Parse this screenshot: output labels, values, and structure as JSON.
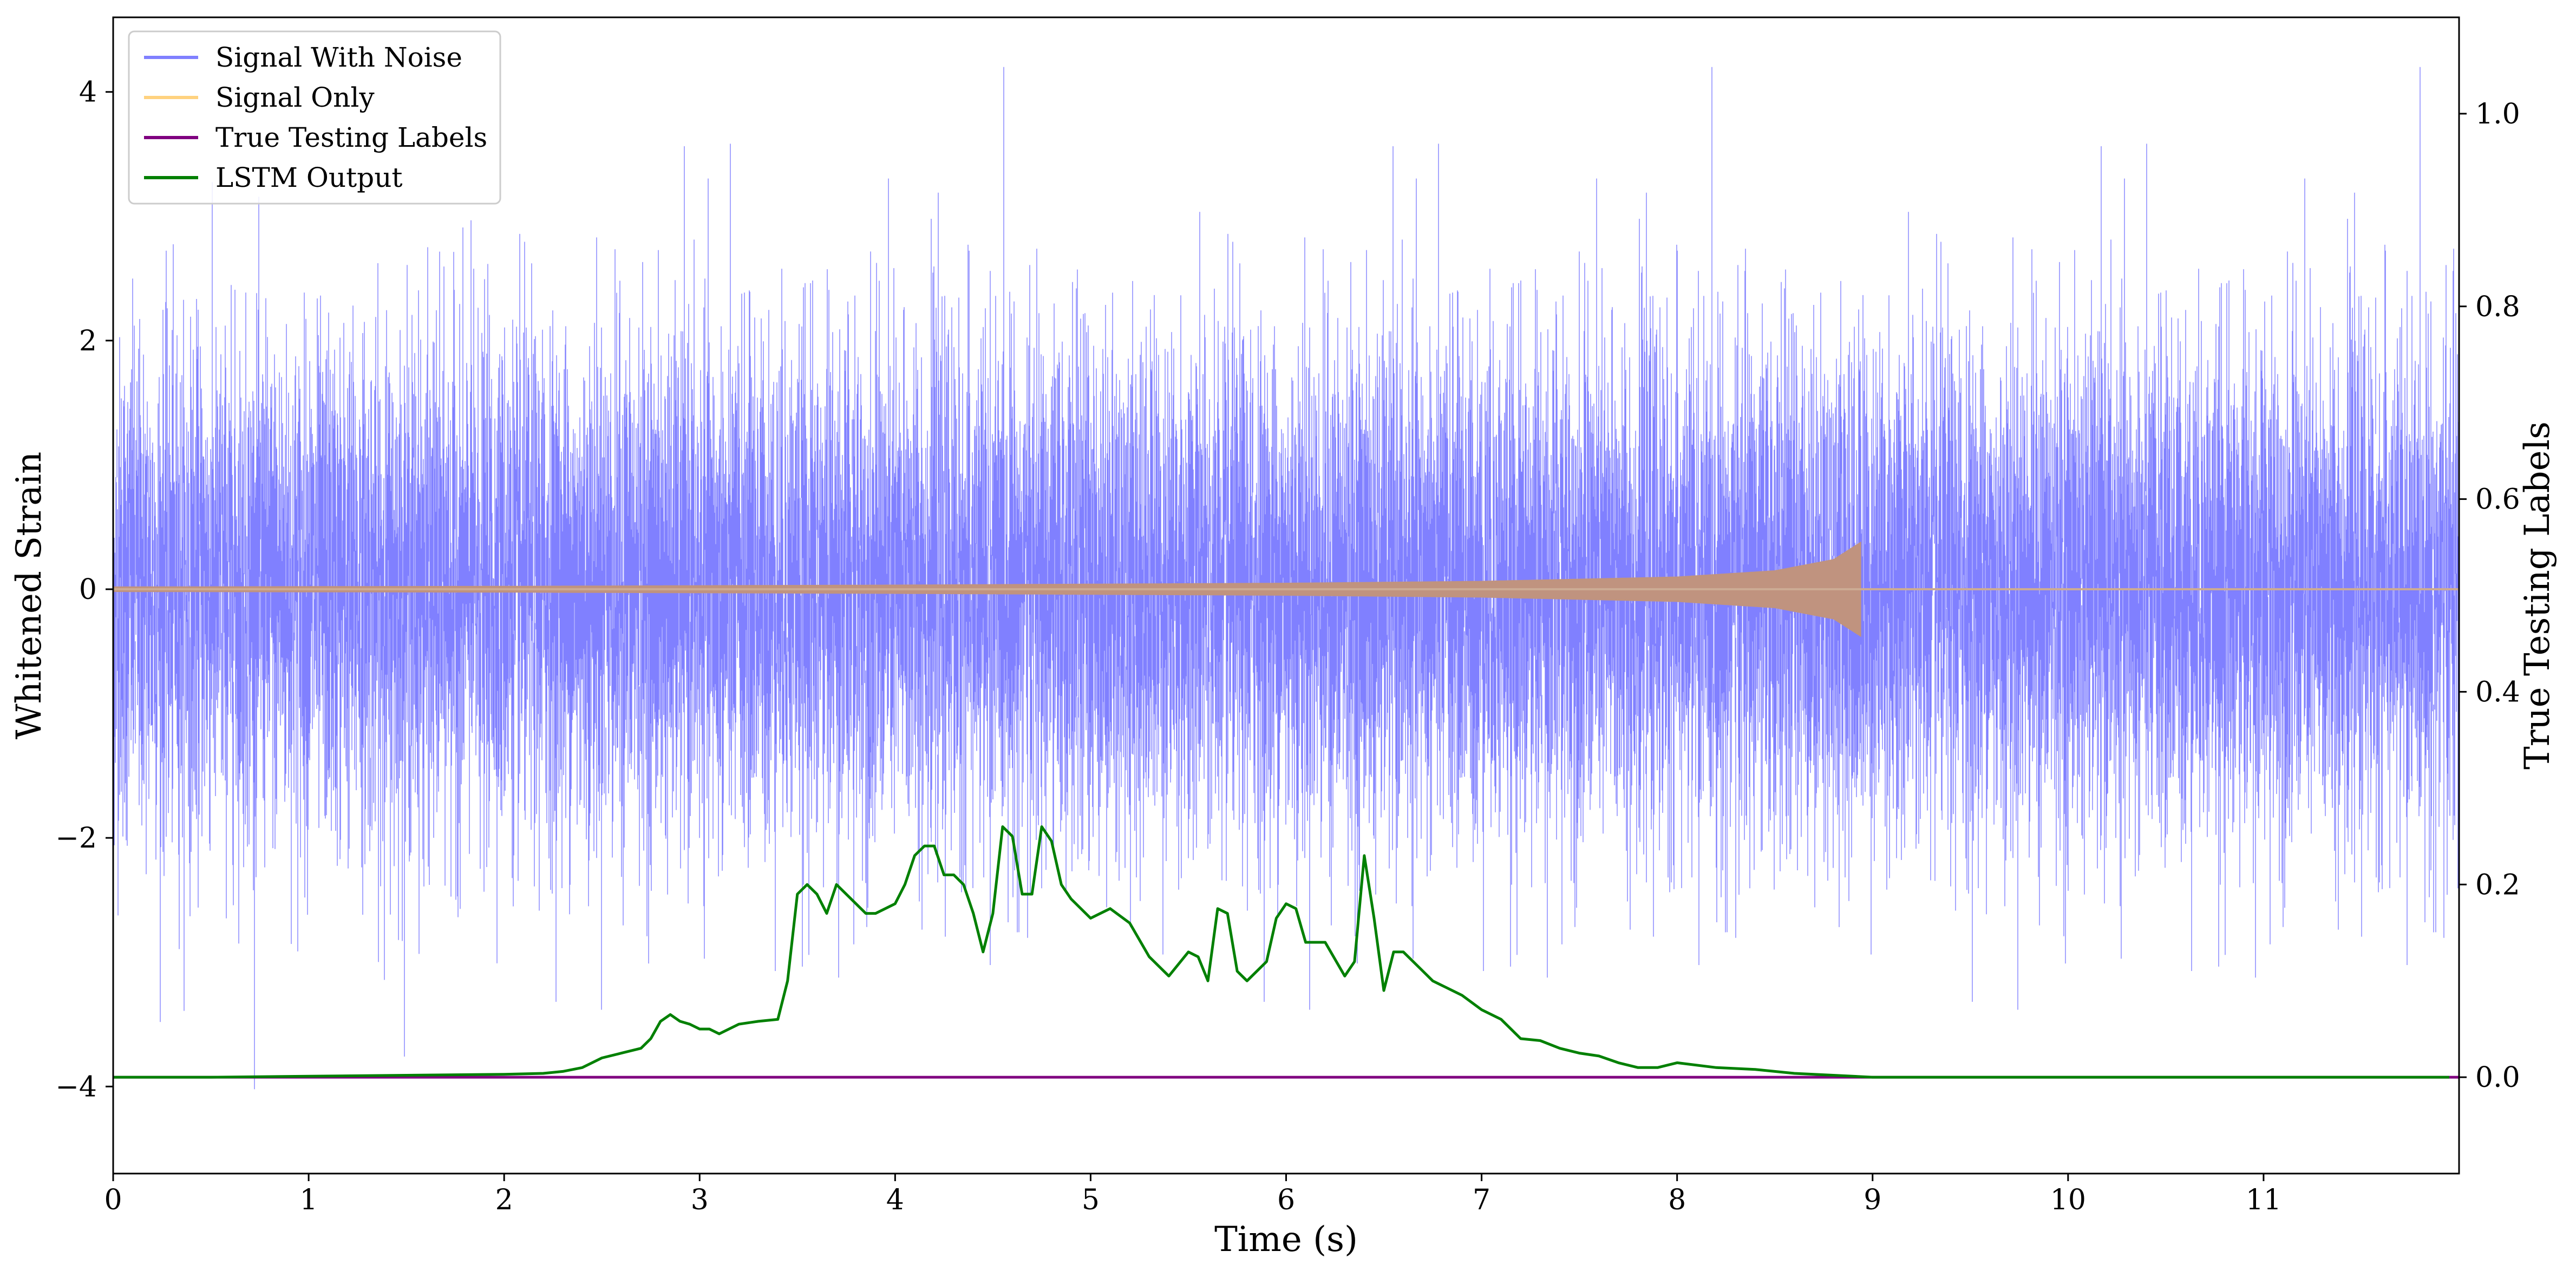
{
  "chart_data": {
    "type": "line",
    "title": "",
    "xlabel": "Time (s)",
    "ylabel": "Whitened Strain",
    "y2label": "True Testing Labels",
    "xlim": [
      0,
      12
    ],
    "ylim": [
      -4.7,
      4.6
    ],
    "y2lim": [
      -0.1,
      1.1
    ],
    "x_ticks": [
      0,
      1,
      2,
      3,
      4,
      5,
      6,
      7,
      8,
      9,
      10,
      11
    ],
    "x_tick_labels": [
      "0",
      "1",
      "2",
      "3",
      "4",
      "5",
      "6",
      "7",
      "8",
      "9",
      "10",
      "11"
    ],
    "y_ticks": [
      -4,
      -2,
      0,
      2,
      4
    ],
    "y_tick_labels": [
      "−4",
      "−2",
      "0",
      "2",
      "4"
    ],
    "y2_ticks": [
      0.0,
      0.2,
      0.4,
      0.6,
      0.8,
      1.0
    ],
    "y2_tick_labels": [
      "0.0",
      "0.2",
      "0.4",
      "0.6",
      "0.8",
      "1.0"
    ],
    "grid": false,
    "legend_position": "top-left",
    "series": [
      {
        "name": "Signal With Noise",
        "axis": "left",
        "color": "#8080ff",
        "kind": "noise",
        "x_range": [
          0,
          12
        ],
        "std": 1.0,
        "peak_max": 4.2,
        "peak_min": -4.3
      },
      {
        "name": "Signal Only",
        "axis": "left",
        "color": "#ffd27f",
        "kind": "chirp",
        "x_range": [
          0,
          12
        ],
        "merger_time": 8.94,
        "envelope_t": [
          0,
          2,
          4,
          6,
          7,
          8,
          8.5,
          8.8,
          8.94,
          8.95
        ],
        "envelope_amp": [
          0.02,
          0.025,
          0.035,
          0.05,
          0.065,
          0.1,
          0.15,
          0.24,
          0.38,
          0.0
        ]
      },
      {
        "name": "True Testing Labels",
        "axis": "right",
        "color": "#800080",
        "x": [
          0,
          12
        ],
        "y": [
          0,
          0
        ]
      },
      {
        "name": "LSTM Output",
        "axis": "right",
        "color": "#008000",
        "x": [
          0,
          0.5,
          1.0,
          1.5,
          2.0,
          2.2,
          2.3,
          2.4,
          2.5,
          2.6,
          2.7,
          2.75,
          2.8,
          2.85,
          2.9,
          2.95,
          3.0,
          3.05,
          3.1,
          3.2,
          3.3,
          3.4,
          3.45,
          3.5,
          3.55,
          3.6,
          3.65,
          3.7,
          3.8,
          3.85,
          3.9,
          4.0,
          4.05,
          4.1,
          4.15,
          4.2,
          4.25,
          4.3,
          4.35,
          4.4,
          4.45,
          4.5,
          4.55,
          4.6,
          4.65,
          4.7,
          4.75,
          4.8,
          4.85,
          4.9,
          5.0,
          5.1,
          5.2,
          5.3,
          5.4,
          5.5,
          5.55,
          5.6,
          5.65,
          5.7,
          5.75,
          5.8,
          5.9,
          5.95,
          6.0,
          6.05,
          6.1,
          6.2,
          6.3,
          6.35,
          6.4,
          6.45,
          6.5,
          6.55,
          6.6,
          6.7,
          6.75,
          6.8,
          6.9,
          7.0,
          7.1,
          7.2,
          7.3,
          7.4,
          7.5,
          7.6,
          7.7,
          7.8,
          7.9,
          8.0,
          8.2,
          8.4,
          8.6,
          8.8,
          9.0,
          9.5,
          10.0,
          11.0,
          11.95
        ],
        "y": [
          0.0,
          0.0,
          0.001,
          0.002,
          0.003,
          0.004,
          0.006,
          0.01,
          0.02,
          0.025,
          0.03,
          0.04,
          0.058,
          0.065,
          0.058,
          0.055,
          0.05,
          0.05,
          0.045,
          0.055,
          0.058,
          0.06,
          0.1,
          0.19,
          0.2,
          0.19,
          0.17,
          0.2,
          0.18,
          0.17,
          0.17,
          0.18,
          0.2,
          0.23,
          0.24,
          0.24,
          0.21,
          0.21,
          0.2,
          0.17,
          0.13,
          0.17,
          0.26,
          0.25,
          0.19,
          0.19,
          0.26,
          0.245,
          0.2,
          0.185,
          0.165,
          0.175,
          0.16,
          0.125,
          0.105,
          0.13,
          0.125,
          0.1,
          0.175,
          0.17,
          0.11,
          0.1,
          0.12,
          0.165,
          0.18,
          0.175,
          0.14,
          0.14,
          0.105,
          0.12,
          0.23,
          0.165,
          0.09,
          0.13,
          0.13,
          0.11,
          0.1,
          0.095,
          0.085,
          0.07,
          0.06,
          0.04,
          0.038,
          0.03,
          0.025,
          0.022,
          0.015,
          0.01,
          0.01,
          0.015,
          0.01,
          0.008,
          0.004,
          0.002,
          0.0,
          0.0,
          0.0,
          0.0,
          0.0
        ]
      }
    ]
  }
}
